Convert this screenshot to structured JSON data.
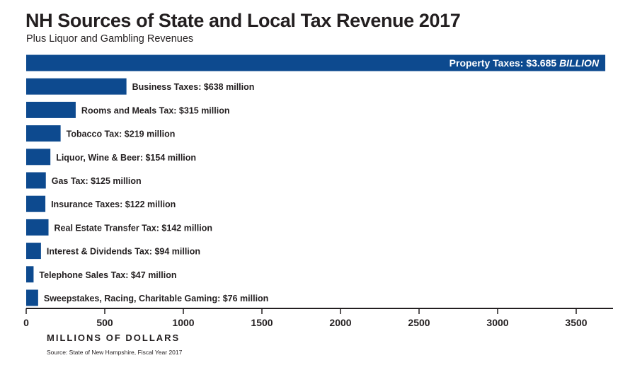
{
  "title": "NH Sources of State and Local Tax Revenue 2017",
  "subtitle": "Plus Liquor and Gambling Revenues",
  "source": "Source: State of New Hampshire, Fiscal Year 2017",
  "colors": {
    "bar": "#0d4a8f",
    "axis": "#231f20",
    "highlight_text": "#ffffff"
  },
  "chart_data": {
    "type": "bar",
    "orientation": "horizontal",
    "xlabel": "MILLIONS OF DOLLARS",
    "ylabel": "",
    "xlim": [
      0,
      3720
    ],
    "xticks": [
      0,
      500,
      1000,
      1500,
      2000,
      2500,
      3000,
      3500
    ],
    "grid": false,
    "legend": "none",
    "categories": [
      "Property Taxes",
      "Business Taxes",
      "Rooms and Meals Tax",
      "Tobacco Tax",
      "Liquor, Wine & Beer",
      "Gas Tax",
      "Insurance Taxes",
      "Real Estate Transfer Tax",
      "Interest & Dividends Tax",
      "Telephone Sales Tax",
      "Sweepstakes, Racing, Charitable Gaming"
    ],
    "values": [
      3685,
      638,
      315,
      219,
      154,
      125,
      122,
      142,
      94,
      47,
      76
    ],
    "data_labels": [
      [
        "Property Taxes:  $3.685 ",
        "BILLION"
      ],
      [
        "Business Taxes:  $638 million",
        ""
      ],
      [
        "Rooms and Meals Tax:  $315 million",
        ""
      ],
      [
        "Tobacco Tax:  $219 million",
        ""
      ],
      [
        "Liquor, Wine & Beer:  $154 million",
        ""
      ],
      [
        "Gas Tax:  $125 million",
        ""
      ],
      [
        "Insurance Taxes:  $122 million",
        ""
      ],
      [
        "Real Estate Transfer Tax:  $142 million",
        ""
      ],
      [
        "Interest & Dividends Tax:  $94 million",
        ""
      ],
      [
        "Telephone Sales Tax:  $47 million",
        ""
      ],
      [
        "Sweepstakes, Racing, Charitable Gaming:  $76 million",
        ""
      ]
    ]
  }
}
